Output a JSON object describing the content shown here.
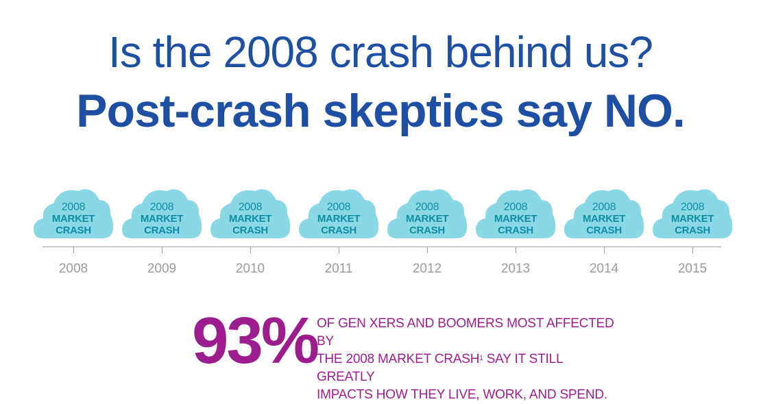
{
  "header": {
    "title_line1": "Is the 2008 crash behind us?",
    "title_line2": "Post-crash skeptics say NO."
  },
  "timeline": {
    "clouds": [
      {
        "year_text": "2008",
        "line2": "MARKET",
        "line3": "CRASH"
      },
      {
        "year_text": "2008",
        "line2": "MARKET",
        "line3": "CRASH"
      },
      {
        "year_text": "2008",
        "line2": "MARKET",
        "line3": "CRASH"
      },
      {
        "year_text": "2008",
        "line2": "MARKET",
        "line3": "CRASH"
      },
      {
        "year_text": "2008",
        "line2": "MARKET",
        "line3": "CRASH"
      },
      {
        "year_text": "2008",
        "line2": "MARKET",
        "line3": "CRASH"
      },
      {
        "year_text": "2008",
        "line2": "MARKET",
        "line3": "CRASH"
      },
      {
        "year_text": "2008",
        "line2": "MARKET",
        "line3": "CRASH"
      }
    ],
    "years": [
      "2008",
      "2009",
      "2010",
      "2011",
      "2012",
      "2013",
      "2014",
      "2015"
    ]
  },
  "stat": {
    "number": "93%",
    "line1": "OF GEN XERS AND BOOMERS MOST AFFECTED BY",
    "line2_before": "THE 2008 MARKET CRASH",
    "line2_footnote": "1",
    "line2_after": " SAY IT STILL GREATLY",
    "line3": "IMPACTS HOW THEY LIVE, WORK, AND SPEND."
  },
  "colors": {
    "title": "#1e4fa3",
    "cloud_fill": "#8ad7e6",
    "cloud_text": "#0f8ea5",
    "axis": "#9d9d9d",
    "stat": "#9c1e8e"
  },
  "icons": {
    "cloud": "cloud-icon"
  }
}
